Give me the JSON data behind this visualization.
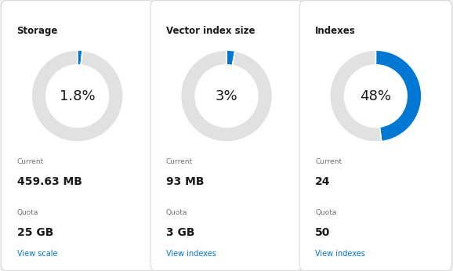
{
  "panels": [
    {
      "title": "Storage",
      "percentage": 1.8,
      "percent_label": "1.8%",
      "current_label": "Current",
      "current_value": "459.63 MB",
      "quota_label": "Quota",
      "quota_value": "25 GB",
      "link_text": "View scale"
    },
    {
      "title": "Vector index size",
      "percentage": 3,
      "percent_label": "3%",
      "current_label": "Current",
      "current_value": "93 MB",
      "quota_label": "Quota",
      "quota_value": "3 GB",
      "link_text": "View indexes"
    },
    {
      "title": "Indexes",
      "percentage": 48,
      "percent_label": "48%",
      "current_label": "Current",
      "current_value": "24",
      "quota_label": "Quota",
      "quota_value": "50",
      "link_text": "View indexes"
    }
  ],
  "blue_color": "#0078d4",
  "gray_color": "#e1e1e1",
  "figure_bg": "#f0f0f0",
  "card_bg": "#ffffff",
  "title_color": "#1a1a1a",
  "label_color": "#707070",
  "value_color": "#1a1a1a",
  "link_color": "#0078d4",
  "border_color": "#d6d6d6",
  "percent_fontsize": 13,
  "title_fontsize": 8.5,
  "label_fontsize": 6.5,
  "value_fontsize": 10,
  "link_fontsize": 7
}
